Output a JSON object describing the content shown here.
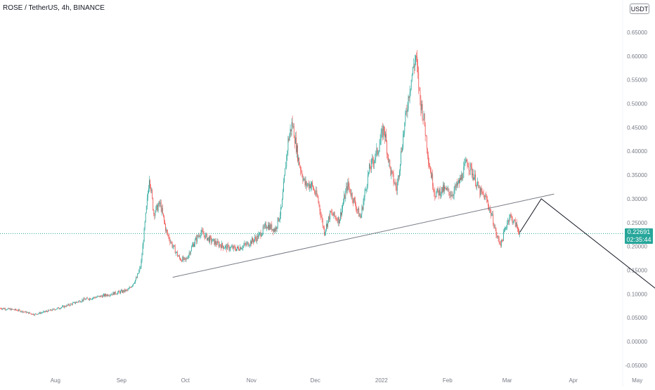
{
  "header": {
    "symbol_title": "ROSE / TetherUS, 4h, BINANCE",
    "currency": "USDT"
  },
  "price_label": {
    "price": "0.22691",
    "countdown": "02:35:44",
    "color": "#26a69a"
  },
  "chart_data": {
    "type": "candlestick",
    "title": "ROSE / TetherUS, 4h, BINANCE",
    "xlabel": "",
    "ylabel": "",
    "x_tick_labels": [
      "Aug",
      "Sep",
      "Oct",
      "Nov",
      "Dec",
      "2022",
      "Feb",
      "Mar",
      "Apr",
      "May"
    ],
    "y_tick_labels": [
      "0.65000",
      "0.60000",
      "0.55000",
      "0.50000",
      "0.45000",
      "0.40000",
      "0.35000",
      "0.30000",
      "0.25000",
      "0.20000",
      "0.15000",
      "0.10000",
      "0.05000",
      "0.00000",
      "-0.05000"
    ],
    "ylim": [
      -0.05,
      0.65
    ],
    "current_price": 0.22691,
    "up_color": "#26a69a",
    "down_color": "#ef5350",
    "price_path": [
      [
        "2021-07-06",
        0.07
      ],
      [
        "2021-07-14",
        0.066
      ],
      [
        "2021-07-22",
        0.057
      ],
      [
        "2021-07-30",
        0.066
      ],
      [
        "2021-08-06",
        0.075
      ],
      [
        "2021-08-14",
        0.088
      ],
      [
        "2021-08-22",
        0.095
      ],
      [
        "2021-08-29",
        0.102
      ],
      [
        "2021-09-04",
        0.108
      ],
      [
        "2021-09-08",
        0.133
      ],
      [
        "2021-09-10",
        0.16
      ],
      [
        "2021-09-13",
        0.3
      ],
      [
        "2021-09-14",
        0.35
      ],
      [
        "2021-09-16",
        0.27
      ],
      [
        "2021-09-19",
        0.29
      ],
      [
        "2021-09-22",
        0.23
      ],
      [
        "2021-09-25",
        0.2
      ],
      [
        "2021-09-28",
        0.175
      ],
      [
        "2021-10-01",
        0.17
      ],
      [
        "2021-10-04",
        0.2
      ],
      [
        "2021-10-08",
        0.23
      ],
      [
        "2021-10-12",
        0.215
      ],
      [
        "2021-10-16",
        0.205
      ],
      [
        "2021-10-20",
        0.198
      ],
      [
        "2021-10-25",
        0.195
      ],
      [
        "2021-10-30",
        0.205
      ],
      [
        "2021-11-04",
        0.22
      ],
      [
        "2021-11-08",
        0.245
      ],
      [
        "2021-11-12",
        0.235
      ],
      [
        "2021-11-15",
        0.28
      ],
      [
        "2021-11-18",
        0.42
      ],
      [
        "2021-11-20",
        0.46
      ],
      [
        "2021-11-23",
        0.38
      ],
      [
        "2021-11-26",
        0.33
      ],
      [
        "2021-11-29",
        0.33
      ],
      [
        "2021-12-02",
        0.3
      ],
      [
        "2021-12-05",
        0.23
      ],
      [
        "2021-12-08",
        0.27
      ],
      [
        "2021-12-12",
        0.255
      ],
      [
        "2021-12-16",
        0.33
      ],
      [
        "2021-12-19",
        0.295
      ],
      [
        "2021-12-22",
        0.26
      ],
      [
        "2021-12-26",
        0.36
      ],
      [
        "2021-12-30",
        0.4
      ],
      [
        "2022-01-02",
        0.45
      ],
      [
        "2022-01-05",
        0.36
      ],
      [
        "2022-01-08",
        0.32
      ],
      [
        "2022-01-11",
        0.43
      ],
      [
        "2022-01-14",
        0.53
      ],
      [
        "2022-01-16",
        0.58
      ],
      [
        "2022-01-17",
        0.6
      ],
      [
        "2022-01-19",
        0.51
      ],
      [
        "2022-01-21",
        0.46
      ],
      [
        "2022-01-23",
        0.38
      ],
      [
        "2022-01-26",
        0.31
      ],
      [
        "2022-01-30",
        0.32
      ],
      [
        "2022-02-03",
        0.31
      ],
      [
        "2022-02-07",
        0.34
      ],
      [
        "2022-02-10",
        0.38
      ],
      [
        "2022-02-13",
        0.35
      ],
      [
        "2022-02-16",
        0.315
      ],
      [
        "2022-02-19",
        0.3
      ],
      [
        "2022-02-22",
        0.26
      ],
      [
        "2022-02-24",
        0.22
      ],
      [
        "2022-02-26",
        0.205
      ],
      [
        "2022-02-28",
        0.238
      ],
      [
        "2022-03-02",
        0.265
      ],
      [
        "2022-03-05",
        0.245
      ],
      [
        "2022-03-07",
        0.22691
      ]
    ],
    "trendline": [
      [
        "2021-09-25",
        0.135
      ],
      [
        "2022-03-23",
        0.31
      ]
    ],
    "projection": [
      [
        "2022-03-07",
        0.23
      ],
      [
        "2022-03-17",
        0.3
      ],
      [
        "2022-05-10",
        0.11
      ]
    ]
  }
}
